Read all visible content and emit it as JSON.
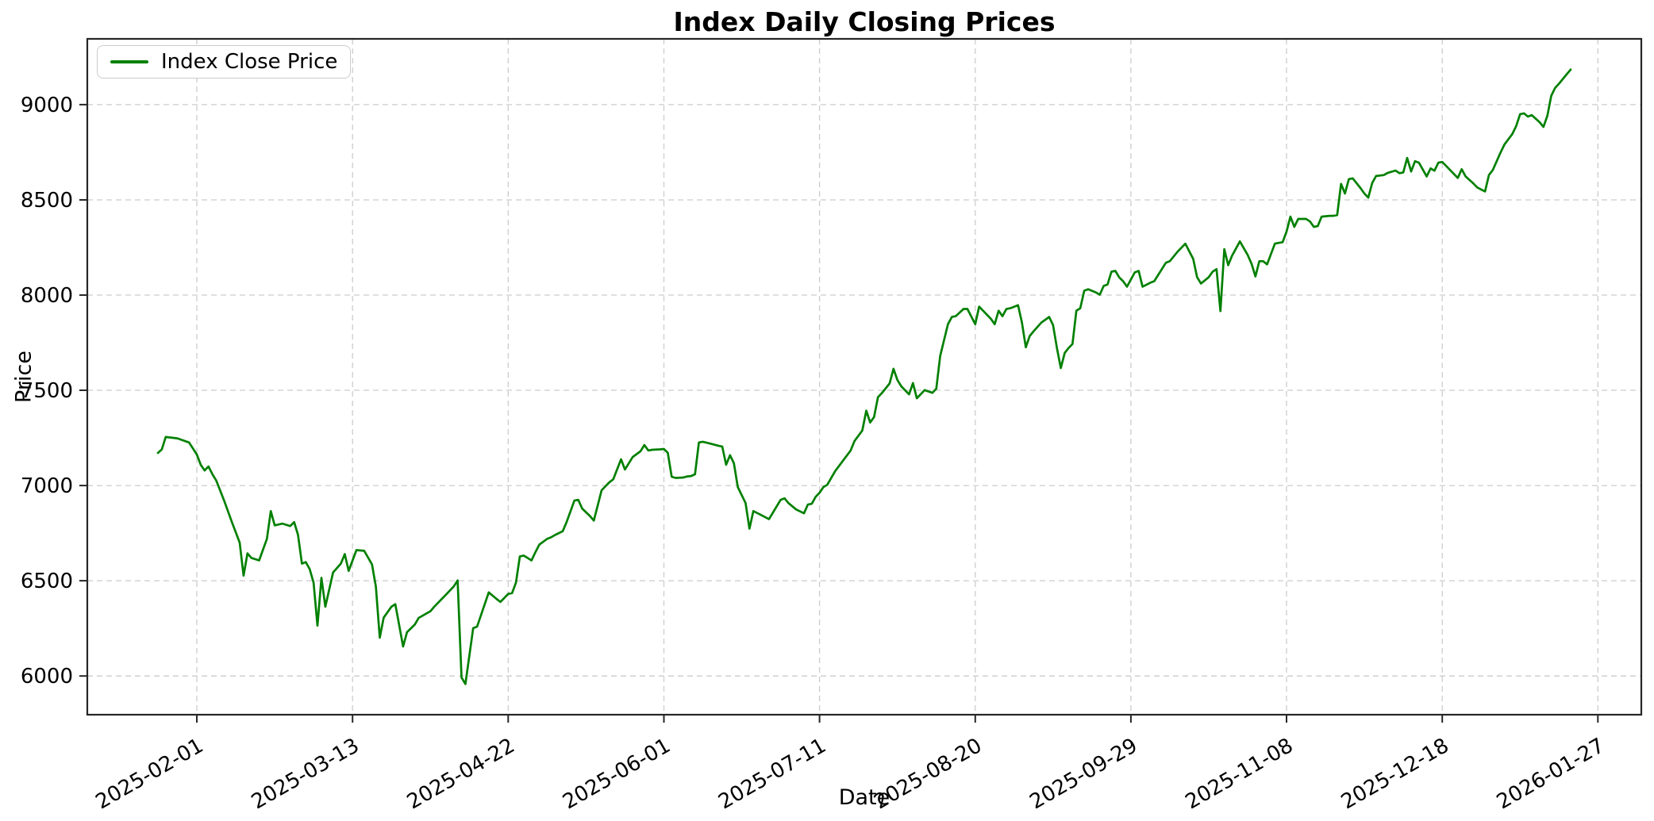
{
  "figure": {
    "title": "Index Daily Closing Prices",
    "x_axis_label": "Date",
    "y_axis_label": "Price",
    "legend": {
      "label": "Index Close Price"
    }
  },
  "style": {
    "line_color": "#008000",
    "line_width": 2.7,
    "grid_color": "#cccccc",
    "spine_color": "#262626",
    "text_color": "#000000",
    "background": "#ffffff"
  },
  "chart_data": {
    "type": "line",
    "title": "Index Daily Closing Prices",
    "xlabel": "Date",
    "ylabel": "Price",
    "legend_position": "upper left",
    "grid": true,
    "series_name": "Index Close Price",
    "line_color": "#008000",
    "x_ticks": [
      "2025-02-01",
      "2025-03-13",
      "2025-04-22",
      "2025-06-01",
      "2025-07-11",
      "2025-08-20",
      "2025-09-29",
      "2025-11-08",
      "2025-12-18",
      "2026-01-27"
    ],
    "x_tick_rotation_deg": 30,
    "y_ticks": [
      6000,
      6500,
      7000,
      7500,
      8000,
      8500,
      9000
    ],
    "y_range_data": [
      5958,
      9184
    ],
    "axis_margin_fraction": 0.05,
    "points": [
      [
        "2025-01-22",
        7171
      ],
      [
        "2025-01-23",
        7190
      ],
      [
        "2025-01-24",
        7255
      ],
      [
        "2025-01-27",
        7248
      ],
      [
        "2025-01-30",
        7226
      ],
      [
        "2025-02-01",
        7163
      ],
      [
        "2025-02-02",
        7109
      ],
      [
        "2025-02-03",
        7079
      ],
      [
        "2025-02-04",
        7100
      ],
      [
        "2025-02-05",
        7059
      ],
      [
        "2025-02-06",
        7025
      ],
      [
        "2025-02-08",
        6921
      ],
      [
        "2025-02-10",
        6808
      ],
      [
        "2025-02-12",
        6700
      ],
      [
        "2025-02-13",
        6527
      ],
      [
        "2025-02-14",
        6644
      ],
      [
        "2025-02-15",
        6620
      ],
      [
        "2025-02-17",
        6607
      ],
      [
        "2025-02-19",
        6720
      ],
      [
        "2025-02-20",
        6866
      ],
      [
        "2025-02-21",
        6791
      ],
      [
        "2025-02-23",
        6800
      ],
      [
        "2025-02-25",
        6787
      ],
      [
        "2025-02-26",
        6808
      ],
      [
        "2025-02-27",
        6741
      ],
      [
        "2025-02-28",
        6590
      ],
      [
        "2025-03-01",
        6598
      ],
      [
        "2025-03-02",
        6561
      ],
      [
        "2025-03-03",
        6490
      ],
      [
        "2025-03-04",
        6264
      ],
      [
        "2025-03-05",
        6515
      ],
      [
        "2025-03-06",
        6364
      ],
      [
        "2025-03-08",
        6544
      ],
      [
        "2025-03-10",
        6590
      ],
      [
        "2025-03-11",
        6640
      ],
      [
        "2025-03-12",
        6552
      ],
      [
        "2025-03-14",
        6661
      ],
      [
        "2025-03-16",
        6657
      ],
      [
        "2025-03-18",
        6586
      ],
      [
        "2025-03-19",
        6469
      ],
      [
        "2025-03-20",
        6201
      ],
      [
        "2025-03-21",
        6306
      ],
      [
        "2025-03-23",
        6364
      ],
      [
        "2025-03-24",
        6377
      ],
      [
        "2025-03-26",
        6155
      ],
      [
        "2025-03-27",
        6230
      ],
      [
        "2025-03-29",
        6270
      ],
      [
        "2025-03-30",
        6305
      ],
      [
        "2025-04-02",
        6340
      ],
      [
        "2025-04-03",
        6364
      ],
      [
        "2025-04-06",
        6427
      ],
      [
        "2025-04-08",
        6470
      ],
      [
        "2025-04-09",
        6502
      ],
      [
        "2025-04-10",
        5992
      ],
      [
        "2025-04-11",
        5958
      ],
      [
        "2025-04-13",
        6251
      ],
      [
        "2025-04-14",
        6259
      ],
      [
        "2025-04-17",
        6439
      ],
      [
        "2025-04-19",
        6405
      ],
      [
        "2025-04-20",
        6389
      ],
      [
        "2025-04-22",
        6431
      ],
      [
        "2025-04-23",
        6435
      ],
      [
        "2025-04-24",
        6490
      ],
      [
        "2025-04-25",
        6628
      ],
      [
        "2025-04-26",
        6632
      ],
      [
        "2025-04-28",
        6607
      ],
      [
        "2025-04-29",
        6650
      ],
      [
        "2025-04-30",
        6690
      ],
      [
        "2025-05-02",
        6720
      ],
      [
        "2025-05-03",
        6728
      ],
      [
        "2025-05-04",
        6740
      ],
      [
        "2025-05-06",
        6760
      ],
      [
        "2025-05-07",
        6808
      ],
      [
        "2025-05-09",
        6921
      ],
      [
        "2025-05-10",
        6925
      ],
      [
        "2025-05-11",
        6879
      ],
      [
        "2025-05-13",
        6840
      ],
      [
        "2025-05-14",
        6816
      ],
      [
        "2025-05-16",
        6975
      ],
      [
        "2025-05-18",
        7017
      ],
      [
        "2025-05-19",
        7033
      ],
      [
        "2025-05-21",
        7138
      ],
      [
        "2025-05-22",
        7084
      ],
      [
        "2025-05-24",
        7150
      ],
      [
        "2025-05-26",
        7180
      ],
      [
        "2025-05-27",
        7213
      ],
      [
        "2025-05-28",
        7184
      ],
      [
        "2025-05-29",
        7188
      ],
      [
        "2025-05-31",
        7190
      ],
      [
        "2025-06-01",
        7192
      ],
      [
        "2025-06-02",
        7172
      ],
      [
        "2025-06-03",
        7046
      ],
      [
        "2025-06-04",
        7040
      ],
      [
        "2025-06-06",
        7042
      ],
      [
        "2025-06-07",
        7048
      ],
      [
        "2025-06-08",
        7050
      ],
      [
        "2025-06-09",
        7059
      ],
      [
        "2025-06-10",
        7226
      ],
      [
        "2025-06-11",
        7230
      ],
      [
        "2025-06-13",
        7220
      ],
      [
        "2025-06-15",
        7209
      ],
      [
        "2025-06-16",
        7205
      ],
      [
        "2025-06-17",
        7109
      ],
      [
        "2025-06-18",
        7159
      ],
      [
        "2025-06-19",
        7117
      ],
      [
        "2025-06-20",
        6992
      ],
      [
        "2025-06-22",
        6908
      ],
      [
        "2025-06-23",
        6774
      ],
      [
        "2025-06-24",
        6866
      ],
      [
        "2025-06-26",
        6845
      ],
      [
        "2025-06-28",
        6824
      ],
      [
        "2025-07-01",
        6925
      ],
      [
        "2025-07-02",
        6933
      ],
      [
        "2025-07-03",
        6908
      ],
      [
        "2025-07-05",
        6874
      ],
      [
        "2025-07-07",
        6854
      ],
      [
        "2025-07-08",
        6900
      ],
      [
        "2025-07-09",
        6904
      ],
      [
        "2025-07-10",
        6941
      ],
      [
        "2025-07-11",
        6962
      ],
      [
        "2025-07-12",
        6992
      ],
      [
        "2025-07-13",
        7004
      ],
      [
        "2025-07-15",
        7075
      ],
      [
        "2025-07-17",
        7130
      ],
      [
        "2025-07-19",
        7184
      ],
      [
        "2025-07-20",
        7234
      ],
      [
        "2025-07-22",
        7289
      ],
      [
        "2025-07-23",
        7393
      ],
      [
        "2025-07-24",
        7331
      ],
      [
        "2025-07-25",
        7360
      ],
      [
        "2025-07-26",
        7464
      ],
      [
        "2025-07-27",
        7485
      ],
      [
        "2025-07-29",
        7536
      ],
      [
        "2025-07-30",
        7613
      ],
      [
        "2025-07-31",
        7554
      ],
      [
        "2025-08-01",
        7521
      ],
      [
        "2025-08-03",
        7479
      ],
      [
        "2025-08-04",
        7538
      ],
      [
        "2025-08-05",
        7458
      ],
      [
        "2025-08-07",
        7501
      ],
      [
        "2025-08-09",
        7487
      ],
      [
        "2025-08-10",
        7508
      ],
      [
        "2025-08-11",
        7680
      ],
      [
        "2025-08-13",
        7847
      ],
      [
        "2025-08-14",
        7885
      ],
      [
        "2025-08-15",
        7889
      ],
      [
        "2025-08-17",
        7927
      ],
      [
        "2025-08-18",
        7927
      ],
      [
        "2025-08-20",
        7847
      ],
      [
        "2025-08-21",
        7939
      ],
      [
        "2025-08-24",
        7876
      ],
      [
        "2025-08-25",
        7847
      ],
      [
        "2025-08-26",
        7918
      ],
      [
        "2025-08-27",
        7889
      ],
      [
        "2025-08-28",
        7927
      ],
      [
        "2025-08-29",
        7931
      ],
      [
        "2025-08-31",
        7947
      ],
      [
        "2025-09-01",
        7856
      ],
      [
        "2025-09-02",
        7726
      ],
      [
        "2025-09-03",
        7785
      ],
      [
        "2025-09-04",
        7810
      ],
      [
        "2025-09-06",
        7856
      ],
      [
        "2025-09-08",
        7885
      ],
      [
        "2025-09-09",
        7843
      ],
      [
        "2025-09-10",
        7722
      ],
      [
        "2025-09-11",
        7617
      ],
      [
        "2025-09-12",
        7696
      ],
      [
        "2025-09-13",
        7722
      ],
      [
        "2025-09-14",
        7743
      ],
      [
        "2025-09-15",
        7918
      ],
      [
        "2025-09-16",
        7931
      ],
      [
        "2025-09-17",
        8023
      ],
      [
        "2025-09-18",
        8031
      ],
      [
        "2025-09-20",
        8014
      ],
      [
        "2025-09-21",
        8002
      ],
      [
        "2025-09-22",
        8048
      ],
      [
        "2025-09-23",
        8056
      ],
      [
        "2025-09-24",
        8123
      ],
      [
        "2025-09-25",
        8127
      ],
      [
        "2025-09-26",
        8093
      ],
      [
        "2025-09-27",
        8073
      ],
      [
        "2025-09-28",
        8044
      ],
      [
        "2025-09-30",
        8119
      ],
      [
        "2025-10-01",
        8127
      ],
      [
        "2025-10-02",
        8044
      ],
      [
        "2025-10-04",
        8065
      ],
      [
        "2025-10-05",
        8073
      ],
      [
        "2025-10-08",
        8170
      ],
      [
        "2025-10-09",
        8178
      ],
      [
        "2025-10-11",
        8228
      ],
      [
        "2025-10-13",
        8270
      ],
      [
        "2025-10-15",
        8190
      ],
      [
        "2025-10-16",
        8094
      ],
      [
        "2025-10-17",
        8061
      ],
      [
        "2025-10-19",
        8094
      ],
      [
        "2025-10-20",
        8123
      ],
      [
        "2025-10-21",
        8136
      ],
      [
        "2025-10-22",
        7916
      ],
      [
        "2025-10-23",
        8241
      ],
      [
        "2025-10-24",
        8157
      ],
      [
        "2025-10-25",
        8207
      ],
      [
        "2025-10-27",
        8282
      ],
      [
        "2025-10-29",
        8211
      ],
      [
        "2025-10-30",
        8165
      ],
      [
        "2025-10-31",
        8098
      ],
      [
        "2025-11-01",
        8178
      ],
      [
        "2025-11-02",
        8178
      ],
      [
        "2025-11-03",
        8161
      ],
      [
        "2025-11-05",
        8270
      ],
      [
        "2025-11-06",
        8274
      ],
      [
        "2025-11-07",
        8278
      ],
      [
        "2025-11-08",
        8333
      ],
      [
        "2025-11-09",
        8412
      ],
      [
        "2025-11-10",
        8358
      ],
      [
        "2025-11-11",
        8400
      ],
      [
        "2025-11-13",
        8400
      ],
      [
        "2025-11-14",
        8387
      ],
      [
        "2025-11-15",
        8358
      ],
      [
        "2025-11-16",
        8362
      ],
      [
        "2025-11-17",
        8412
      ],
      [
        "2025-11-19",
        8416
      ],
      [
        "2025-11-20",
        8416
      ],
      [
        "2025-11-21",
        8420
      ],
      [
        "2025-11-22",
        8584
      ],
      [
        "2025-11-23",
        8533
      ],
      [
        "2025-11-24",
        8609
      ],
      [
        "2025-11-25",
        8613
      ],
      [
        "2025-11-27",
        8562
      ],
      [
        "2025-11-28",
        8533
      ],
      [
        "2025-11-29",
        8512
      ],
      [
        "2025-11-30",
        8588
      ],
      [
        "2025-12-01",
        8625
      ],
      [
        "2025-12-03",
        8630
      ],
      [
        "2025-12-04",
        8642
      ],
      [
        "2025-12-06",
        8654
      ],
      [
        "2025-12-07",
        8640
      ],
      [
        "2025-12-08",
        8644
      ],
      [
        "2025-12-09",
        8720
      ],
      [
        "2025-12-10",
        8649
      ],
      [
        "2025-12-11",
        8703
      ],
      [
        "2025-12-12",
        8695
      ],
      [
        "2025-12-14",
        8623
      ],
      [
        "2025-12-15",
        8665
      ],
      [
        "2025-12-16",
        8653
      ],
      [
        "2025-12-17",
        8695
      ],
      [
        "2025-12-18",
        8699
      ],
      [
        "2025-12-19",
        8678
      ],
      [
        "2025-12-21",
        8636
      ],
      [
        "2025-12-22",
        8615
      ],
      [
        "2025-12-23",
        8661
      ],
      [
        "2025-12-24",
        8623
      ],
      [
        "2025-12-26",
        8586
      ],
      [
        "2025-12-27",
        8565
      ],
      [
        "2025-12-29",
        8544
      ],
      [
        "2025-12-30",
        8630
      ],
      [
        "2025-12-31",
        8657
      ],
      [
        "2026-01-02",
        8749
      ],
      [
        "2026-01-03",
        8791
      ],
      [
        "2026-01-05",
        8845
      ],
      [
        "2026-01-06",
        8887
      ],
      [
        "2026-01-07",
        8950
      ],
      [
        "2026-01-08",
        8954
      ],
      [
        "2026-01-09",
        8937
      ],
      [
        "2026-01-10",
        8945
      ],
      [
        "2026-01-12",
        8908
      ],
      [
        "2026-01-13",
        8883
      ],
      [
        "2026-01-14",
        8941
      ],
      [
        "2026-01-15",
        9046
      ],
      [
        "2026-01-16",
        9088
      ],
      [
        "2026-01-17",
        9110
      ],
      [
        "2026-01-19",
        9160
      ],
      [
        "2026-01-20",
        9184
      ]
    ]
  }
}
